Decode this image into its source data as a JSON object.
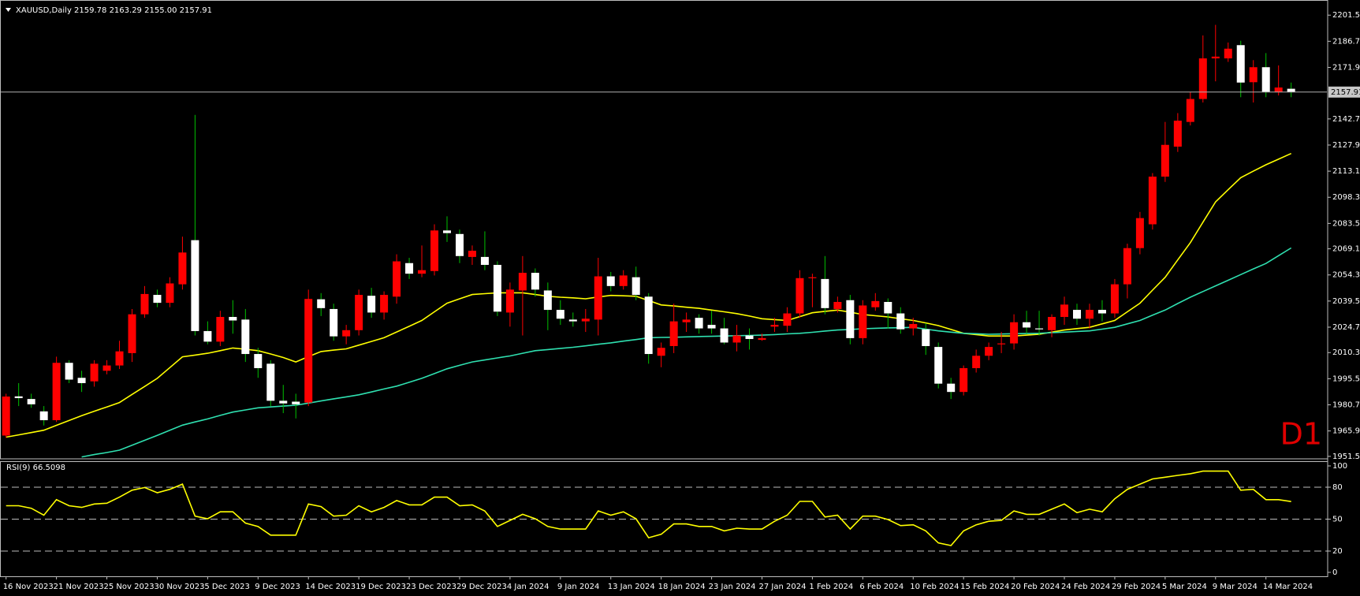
{
  "chart_data": [
    {
      "type": "candlestick",
      "title": "XAUUSD,Daily  2159.78 2163.29 2155.00 2157.91",
      "annotation": "D1",
      "categories": [
        "16 Nov 2023",
        null,
        null,
        null,
        "21 Nov 2023",
        null,
        null,
        null,
        "25 Nov 2023",
        null,
        null,
        null,
        "30 Nov 2023",
        null,
        null,
        null,
        "5 Dec 2023",
        null,
        null,
        null,
        "9 Dec 2023",
        null,
        null,
        null,
        "14 Dec 2023",
        null,
        null,
        null,
        "19 Dec 2023",
        null,
        null,
        null,
        "23 Dec 2023",
        null,
        null,
        null,
        "29 Dec 2023",
        null,
        null,
        null,
        "4 Jan 2024",
        null,
        null,
        null,
        "9 Jan 2024",
        null,
        null,
        null,
        "13 Jan 2024",
        null,
        null,
        null,
        "18 Jan 2024",
        null,
        null,
        null,
        "23 Jan 2024",
        null,
        null,
        null,
        "27 Jan 2024",
        null,
        null,
        null,
        "1 Feb 2024",
        null,
        null,
        null,
        "6 Feb 2024",
        null,
        null,
        null,
        "10 Feb 2024",
        null,
        null,
        null,
        "15 Feb 2024",
        null,
        null,
        null,
        "20 Feb 2024",
        null,
        null,
        null,
        "24 Feb 2024",
        null,
        null,
        null,
        "29 Feb 2024",
        null,
        null,
        null,
        "5 Mar 2024",
        null,
        null,
        null,
        "9 Mar 2024",
        null,
        null,
        null,
        "14 Mar 2024",
        null,
        null
      ],
      "open": [
        1963.3,
        1985.5,
        1984,
        1977,
        1972,
        2004.5,
        1996,
        1994,
        2000,
        2003,
        2010,
        2032,
        2043,
        2038.5,
        2049,
        2074,
        2022.5,
        2016.5,
        2030.5,
        2029,
        2009.5,
        2004,
        1983,
        1982.5,
        1982,
        2040.5,
        2035,
        2019.5,
        2023,
        2042.5,
        2033,
        2042,
        2061,
        2055,
        2056.5,
        2079.5,
        2077.5,
        2064.5,
        2064.5,
        2060,
        2033,
        2045.5,
        2055.5,
        2045.5,
        2034.5,
        2029,
        2028,
        2029,
        2053.5,
        2048,
        2053,
        2042,
        2008.5,
        2014,
        2027.5,
        2030,
        2026,
        2024,
        2016,
        2020,
        2017.5,
        2025,
        2025.5,
        2032.5,
        2052.5,
        2052,
        2035,
        2040,
        2018.5,
        2036,
        2039,
        2032.5,
        2024,
        2023.5,
        2013.5,
        1992.7,
        1988,
        2001.5,
        2008.5,
        2015,
        2015.5,
        2027.5,
        2024,
        2023,
        2030.5,
        2034.5,
        2029.5,
        2034.5,
        2032.5,
        2049,
        2069.5,
        2083,
        2110,
        2127,
        2141,
        2154,
        2177,
        2177,
        2184.5,
        2163.5,
        2172,
        2158,
        2159.78
      ],
      "high": [
        1987,
        1993,
        1987,
        1980,
        2008,
        2006,
        2000,
        2006,
        2006,
        2017,
        2035,
        2048,
        2046,
        2053,
        2076,
        2145,
        2028,
        2034,
        2040,
        2035,
        2013,
        2006,
        1992,
        1987,
        2046,
        2044,
        2038,
        2026,
        2046,
        2047,
        2045,
        2066,
        2064,
        2071,
        2083,
        2087.5,
        2080,
        2071,
        2079,
        2062,
        2050,
        2065,
        2058,
        2050,
        2040,
        2033,
        2035,
        2064,
        2056,
        2057,
        2059,
        2044,
        2016,
        2038,
        2033,
        2032,
        2034,
        2030,
        2026,
        2024,
        2021,
        2030,
        2036,
        2057,
        2055,
        2065,
        2042,
        2043,
        2040,
        2044,
        2041,
        2036,
        2030,
        2027,
        2016,
        1996,
        2003,
        2012,
        2016,
        2022,
        2032,
        2034,
        2034,
        2032,
        2042,
        2038,
        2038,
        2040,
        2052,
        2072,
        2090,
        2112,
        2141,
        2146,
        2158,
        2190,
        2196,
        2186,
        2187,
        2176,
        2180,
        2173,
        2163.29
      ],
      "low": [
        1962,
        1980,
        1979,
        1969,
        1971,
        1993,
        1988,
        1991,
        1998,
        2001,
        2005,
        2030,
        2036,
        2036,
        2046,
        2020,
        2015,
        2014,
        2021,
        2005,
        1996,
        1980,
        1976,
        1973,
        1980,
        2031,
        2017,
        2015,
        2020,
        2030,
        2029,
        2038,
        2052,
        2053,
        2054,
        2073,
        2061,
        2060,
        2057,
        2031,
        2025,
        2020,
        2042,
        2023,
        2026,
        2025,
        2022,
        2020,
        2045,
        2046,
        2040,
        2004,
        2002,
        2010,
        2022,
        2021,
        2021,
        2015,
        2011,
        2012,
        2017,
        2022,
        2022,
        2030,
        2036,
        2032,
        2033,
        2015,
        2015,
        2034,
        2024,
        2021,
        2020,
        2009,
        1990,
        1984,
        1986,
        1999,
        2006,
        2010,
        2012,
        2021,
        2020,
        2019,
        2026,
        2026,
        2024,
        2028,
        2030,
        2041,
        2066,
        2080,
        2107,
        2124,
        2139,
        2152,
        2164,
        2175,
        2155,
        2152,
        2155,
        2156,
        2155
      ],
      "close": [
        1985.4,
        1984.5,
        1981,
        1972,
        2004.5,
        1995,
        1993,
        2004,
        2003,
        2011,
        2032,
        2043.5,
        2038.5,
        2049.5,
        2067,
        2022.5,
        2016.5,
        2030.5,
        2028.5,
        2009.5,
        2001.5,
        1983,
        1981.5,
        1981,
        2040.7,
        2035.5,
        2019.5,
        2023,
        2043,
        2033,
        2043,
        2062,
        2055,
        2057,
        2079.5,
        2078,
        2065,
        2068,
        2060,
        2033.5,
        2046,
        2055.5,
        2046,
        2034.5,
        2029.5,
        2028,
        2029.5,
        2053.5,
        2048,
        2054,
        2043,
        2009.5,
        2013,
        2028,
        2029,
        2024,
        2024,
        2016,
        2020,
        2018,
        2018.5,
        2026,
        2032.5,
        2052.5,
        2053,
        2035.5,
        2039,
        2018.5,
        2037,
        2039.5,
        2032.5,
        2023.5,
        2026.5,
        2014,
        1992.7,
        1988,
        2001.5,
        2008.5,
        2013.5,
        2015.5,
        2027.5,
        2024.5,
        2023.5,
        2030.5,
        2037.5,
        2029.5,
        2034.5,
        2032.5,
        2049,
        2069.5,
        2086.5,
        2110,
        2128,
        2141.7,
        2154,
        2177,
        2178,
        2182.5,
        2163.3,
        2172,
        2158,
        2160.5,
        2157.91
      ],
      "up_color": "#ff0000",
      "down_color": "#ffffff",
      "down_wick_color": "#00c000",
      "series": [
        {
          "color": "#ffff00",
          "values": [
            1962.4,
            1963.7,
            1965.0,
            1966.3,
            1969.1,
            1971.8,
            1974.6,
            1977.1,
            1979.5,
            1982.0,
            1986.6,
            1991.1,
            1995.7,
            2001.8,
            2007.9,
            2008.9,
            2009.9,
            2011.4,
            2012.9,
            2012.2,
            2011.4,
            2009.5,
            2007.5,
            2005.0,
            2008.0,
            2010.9,
            2011.7,
            2012.4,
            2014.5,
            2016.6,
            2018.7,
            2022.0,
            2025.2,
            2028.5,
            2033.4,
            2038.3,
            2040.8,
            2043.2,
            2043.7,
            2044.2,
            2044.2,
            2044.2,
            2043.2,
            2042.2,
            2041.7,
            2041.3,
            2040.8,
            2041.8,
            2042.7,
            2042.5,
            2042.2,
            2039.8,
            2037.3,
            2036.7,
            2036.0,
            2035.4,
            2034.4,
            2033.4,
            2032.4,
            2031.0,
            2029.5,
            2029.0,
            2028.5,
            2030.7,
            2032.9,
            2033.7,
            2034.4,
            2033.2,
            2031.9,
            2031.2,
            2030.5,
            2029.5,
            2028.5,
            2027.1,
            2025.6,
            2023.4,
            2021.2,
            2020.5,
            2019.7,
            2019.7,
            2019.7,
            2020.2,
            2020.7,
            2021.9,
            2023.1,
            2023.9,
            2024.6,
            2026.6,
            2028.5,
            2033.4,
            2038.3,
            2045.7,
            2053.0,
            2062.8,
            2072.6,
            2084.2,
            2095.7,
            2102.6,
            2109.4,
            2113.1,
            2116.7,
            2119.9,
            2123.1
          ]
        },
        {
          "color": "#2fe0b0",
          "values": [
            null,
            null,
            null,
            null,
            null,
            null,
            1951.2,
            1952.5,
            1953.7,
            1955.0,
            1957.8,
            1960.6,
            1963.4,
            1966.3,
            1969.2,
            1971.0,
            1972.7,
            1974.7,
            1976.6,
            1977.8,
            1979.0,
            1979.5,
            1980.0,
            1980.5,
            1981.7,
            1982.9,
            1984.1,
            1985.2,
            1986.4,
            1988.0,
            1989.7,
            1991.3,
            1993.5,
            1995.7,
            1998.4,
            2001.1,
            2003.1,
            2005.0,
            2006.1,
            2007.3,
            2008.4,
            2009.9,
            2011.4,
            2012.0,
            2012.7,
            2013.3,
            2014.1,
            2015.0,
            2015.8,
            2016.8,
            2017.7,
            2018.7,
            2018.9,
            2019.0,
            2019.2,
            2019.4,
            2019.5,
            2019.7,
            2019.9,
            2020.0,
            2020.2,
            2020.5,
            2020.9,
            2021.2,
            2021.8,
            2022.5,
            2023.1,
            2023.4,
            2023.8,
            2024.1,
            2024.3,
            2024.4,
            2024.6,
            2023.6,
            2022.6,
            2021.9,
            2021.2,
            2021.0,
            2020.7,
            2020.8,
            2021.0,
            2021.1,
            2021.2,
            2021.6,
            2021.9,
            2022.3,
            2022.6,
            2023.6,
            2024.6,
            2026.6,
            2028.5,
            2031.5,
            2034.4,
            2038.1,
            2041.7,
            2044.9,
            2048.1,
            2051.3,
            2054.5,
            2057.7,
            2060.8,
            2065.2,
            2069.6
          ]
        }
      ],
      "price_line": 2157.91,
      "ylim": [
        1951,
        2207.4
      ],
      "yticks": [
        2201.5,
        {
          "value": 2186.7,
          "label": "2186.70"
        },
        {
          "value": 2171.9,
          "label": "2171.90"
        },
        {
          "value": 2142.7,
          "label": "2142.70"
        },
        {
          "value": 2127.9,
          "label": "2127.90"
        },
        {
          "value": 2113.1,
          "label": "2113.10"
        },
        {
          "value": 2098.3,
          "label": "2098.30"
        },
        {
          "value": 2083.5,
          "label": "2083.50"
        },
        {
          "value": 2069.1,
          "label": "2069.10"
        },
        {
          "value": 2054.3,
          "label": "2054.30"
        },
        {
          "value": 2039.5,
          "label": "2039.50"
        },
        {
          "value": 2024.7,
          "label": "2024.70"
        },
        {
          "value": 2010.3,
          "label": "2010.30"
        },
        {
          "value": 1995.5,
          "label": "1995.50"
        },
        {
          "value": 1980.7,
          "label": "1980.70"
        },
        {
          "value": 1965.9,
          "label": "1965.90"
        },
        {
          "value": 1951.5,
          "label": "1951.50"
        }
      ]
    },
    {
      "type": "line",
      "title": "RSI(9)",
      "color": "#ffff00",
      "values": [
        62.6,
        62.6,
        60.2,
        53.7,
        68.3,
        62.6,
        61.0,
        64.2,
        65.0,
        70.7,
        77.2,
        79.7,
        74.8,
        78.0,
        82.9,
        52.8,
        50.4,
        56.9,
        56.9,
        46.3,
        43.1,
        35.0,
        35.0,
        35.0,
        64.2,
        61.8,
        52.8,
        53.7,
        62.6,
        56.9,
        61.0,
        67.5,
        63.4,
        63.4,
        70.7,
        70.7,
        62.6,
        63.4,
        57.7,
        43.1,
        48.8,
        54.5,
        50.4,
        43.1,
        40.7,
        40.7,
        40.7,
        57.7,
        53.7,
        56.9,
        50.4,
        32.5,
        35.8,
        45.5,
        45.5,
        43.1,
        43.1,
        39.0,
        41.5,
        40.7,
        40.7,
        48.0,
        53.7,
        66.7,
        66.7,
        52.0,
        53.7,
        40.7,
        52.8,
        52.8,
        49.6,
        43.9,
        44.7,
        39.0,
        27.6,
        25.2,
        39.0,
        44.7,
        48.0,
        48.8,
        57.7,
        54.5,
        54.5,
        59.3,
        64.2,
        56.1,
        59.3,
        56.9,
        69.1,
        78.0,
        82.9,
        87.8,
        89.4,
        91.1,
        92.7,
        95.1,
        95.1,
        95.1,
        77.2,
        78.0,
        68.3,
        68.3,
        66.5098
      ],
      "levels": [
        20,
        50,
        80
      ],
      "ylim": [
        0,
        100
      ],
      "yticks": [
        0,
        20,
        50,
        80,
        100
      ]
    }
  ]
}
